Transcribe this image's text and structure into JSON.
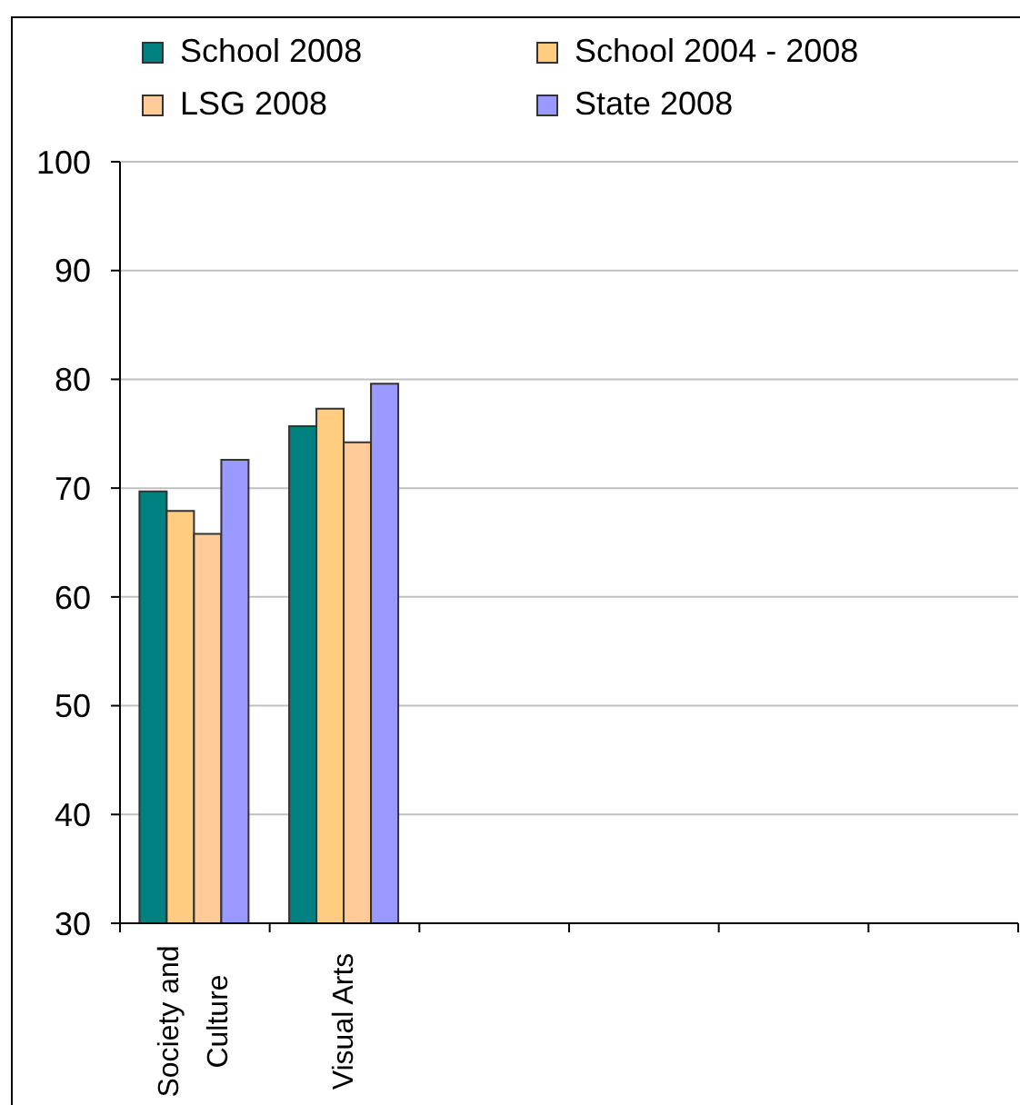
{
  "chart_data": {
    "type": "bar",
    "categories": [
      "Society and Culture",
      "Visual Arts",
      null,
      null,
      null,
      null
    ],
    "series": [
      {
        "name": "School 2008",
        "color": "#008080",
        "values": [
          69.7,
          75.7,
          null,
          null,
          null,
          null
        ]
      },
      {
        "name": "School 2004 - 2008",
        "color": "#ffcc80",
        "values": [
          67.9,
          77.3,
          null,
          null,
          null,
          null
        ]
      },
      {
        "name": "LSG 2008",
        "color": "#ffcc99",
        "values": [
          65.8,
          74.2,
          null,
          null,
          null,
          null
        ]
      },
      {
        "name": "State 2008",
        "color": "#9999ff",
        "values": [
          72.6,
          79.6,
          null,
          null,
          null,
          null
        ]
      }
    ],
    "ylim": [
      30,
      100
    ],
    "yticks": [
      30,
      40,
      50,
      60,
      70,
      80,
      90,
      100
    ],
    "grid": "y",
    "legend": "top"
  }
}
